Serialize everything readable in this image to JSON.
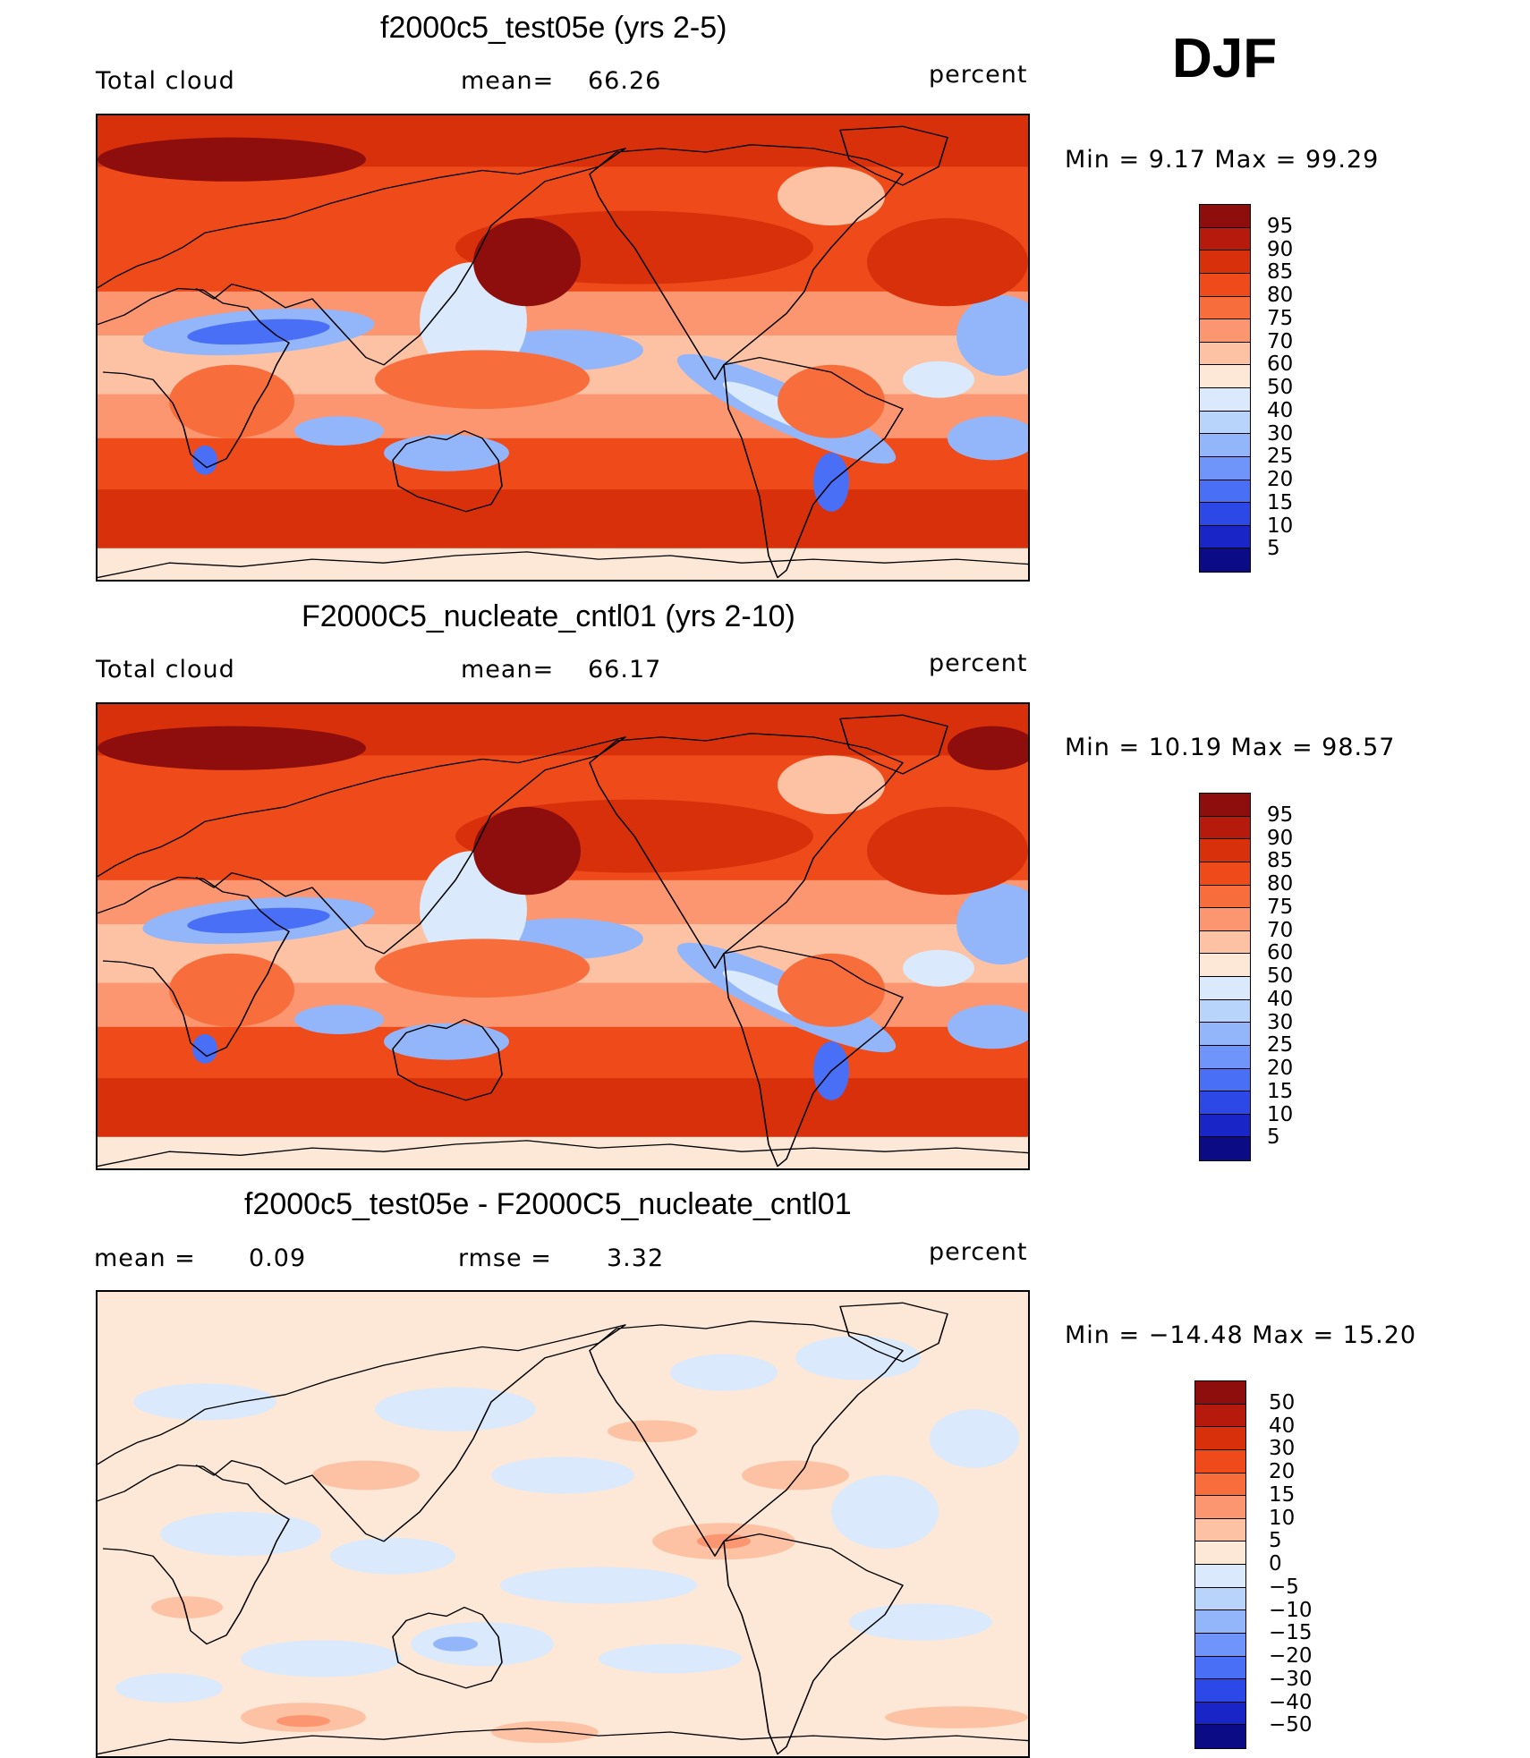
{
  "season": "DJF",
  "panels": [
    {
      "title": "f2000c5_test05e (yrs 2-5)",
      "left_label": "Total cloud",
      "stat1_label": "mean=",
      "stat1_value": "66.26",
      "stat2_label": "",
      "stat2_value": "",
      "units": "percent",
      "minmax": "Min =    9.17  Max =    99.29",
      "type": "abs",
      "mean_value": 66.26
    },
    {
      "title": "F2000C5_nucleate_cntl01 (yrs 2-10)",
      "left_label": "Total cloud",
      "stat1_label": "mean=",
      "stat1_value": "66.17",
      "stat2_label": "",
      "stat2_value": "",
      "units": "percent",
      "minmax": "Min =   10.19  Max =    98.57",
      "type": "abs",
      "mean_value": 66.17
    },
    {
      "title": "f2000c5_test05e - F2000C5_nucleate_cntl01",
      "left_label": "mean =",
      "stat1_label": "",
      "stat1_value": "0.09",
      "stat2_label": "rmse =",
      "stat2_value": "3.32",
      "units": "percent",
      "minmax": "Min = −14.48  Max =   15.20",
      "type": "diff",
      "mean_value": 0.09
    }
  ],
  "colorbars": {
    "abs": {
      "labels": [
        "95",
        "90",
        "85",
        "80",
        "75",
        "70",
        "60",
        "50",
        "40",
        "30",
        "25",
        "20",
        "15",
        "10",
        "5"
      ],
      "colors": [
        "#8e0d0d",
        "#b51a0c",
        "#d8300b",
        "#ef4a1a",
        "#f86d3c",
        "#fb9670",
        "#fdc2a4",
        "#fde8d8",
        "#dae9fb",
        "#b8d4fb",
        "#93b6fb",
        "#6f95fa",
        "#4a6ff7",
        "#2c48e6",
        "#1a25c8",
        "#0b0b86"
      ]
    },
    "diff": {
      "labels": [
        "50",
        "40",
        "30",
        "20",
        "15",
        "10",
        "5",
        "0",
        "−5",
        "−10",
        "−15",
        "−20",
        "−30",
        "−40",
        "−50"
      ],
      "colors": [
        "#8e0d0d",
        "#b51a0c",
        "#d8300b",
        "#ef4a1a",
        "#f86d3c",
        "#fb9670",
        "#fdc2a4",
        "#fde8d8",
        "#dae9fb",
        "#b8d4fb",
        "#93b6fb",
        "#6f95fa",
        "#4a6ff7",
        "#2c48e6",
        "#1a25c8",
        "#0b0b86"
      ]
    }
  },
  "map_colors": {
    "ocean_deep_red": "#d8300b",
    "red": "#ef4a1a",
    "orange": "#f86d3c",
    "salmon": "#fb9670",
    "peach": "#fdc2a4",
    "cream": "#fde8d8",
    "light_blue": "#dae9fb",
    "blue": "#93b6fb",
    "dark_blue": "#4a6ff7",
    "darkest_red": "#8e0d0d"
  }
}
